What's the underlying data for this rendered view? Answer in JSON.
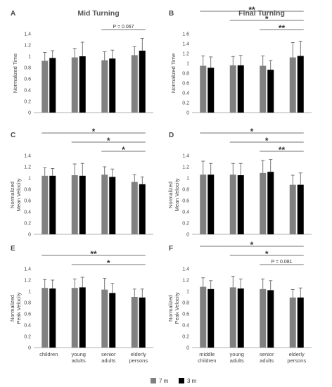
{
  "column_titles": [
    "Mid Turning",
    "Final Turning"
  ],
  "legend": [
    {
      "label": "7 m",
      "color": "#808080"
    },
    {
      "label": "3 m",
      "color": "#000000"
    }
  ],
  "chart_data": [
    {
      "panel": "A",
      "type": "bar",
      "ylabel": [
        "Normalized Time"
      ],
      "ylim": [
        0,
        1.4
      ],
      "yticks": [
        "0",
        "0.2",
        "0.4",
        "0.6",
        "0.8",
        "1",
        "1.2",
        "1.4"
      ],
      "categories": [
        [
          "children"
        ],
        [
          "young",
          "adults"
        ],
        [
          "senior",
          "adults"
        ],
        [
          "elderly",
          "persons"
        ]
      ],
      "show_xticklabels": false,
      "series": [
        {
          "name": "7 m",
          "values": [
            0.92,
            0.98,
            0.93,
            1.02
          ],
          "errors": [
            0.15,
            0.16,
            0.15,
            0.15
          ]
        },
        {
          "name": "3 m",
          "values": [
            0.97,
            1.0,
            0.96,
            1.1
          ],
          "errors": [
            0.13,
            0.25,
            0.15,
            0.22
          ]
        }
      ],
      "annotations": [
        {
          "from": 2,
          "to": 3,
          "label": "P = 0.067"
        }
      ]
    },
    {
      "panel": "B",
      "type": "bar",
      "ylabel": [
        "Normalized Time"
      ],
      "ylim": [
        0,
        1.6
      ],
      "yticks": [
        "0",
        "0.2",
        "0.4",
        "0.6",
        "0.8",
        "1",
        "1.2",
        "1.4",
        "1.6"
      ],
      "categories": [
        [
          "middle",
          "children"
        ],
        [
          "young",
          "adults"
        ],
        [
          "senior",
          "adults"
        ],
        [
          "elderly",
          "persons"
        ]
      ],
      "show_xticklabels": false,
      "series": [
        {
          "name": "7 m",
          "values": [
            0.95,
            0.96,
            0.95,
            1.12
          ],
          "errors": [
            0.2,
            0.18,
            0.2,
            0.3
          ]
        },
        {
          "name": "3 m",
          "values": [
            0.91,
            0.96,
            0.87,
            1.15
          ],
          "errors": [
            0.22,
            0.2,
            0.19,
            0.3
          ]
        }
      ],
      "annotations": [
        {
          "from": 0,
          "to": 3,
          "label": "**"
        },
        {
          "from": 1,
          "to": 3,
          "label": "*"
        },
        {
          "from": 2,
          "to": 3,
          "label": "**"
        }
      ]
    },
    {
      "panel": "C",
      "type": "bar",
      "ylabel": [
        "Normalized",
        "Mean Velocity"
      ],
      "ylim": [
        0,
        1.4
      ],
      "yticks": [
        "0",
        "0.2",
        "0.4",
        "0.6",
        "0.8",
        "1",
        "1.2",
        "1.4"
      ],
      "categories": [
        [
          "children"
        ],
        [
          "young",
          "adults"
        ],
        [
          "senior",
          "adults"
        ],
        [
          "elderly",
          "persons"
        ]
      ],
      "show_xticklabels": false,
      "series": [
        {
          "name": "7 m",
          "values": [
            1.04,
            1.05,
            1.06,
            0.93
          ],
          "errors": [
            0.14,
            0.2,
            0.14,
            0.13
          ]
        },
        {
          "name": "3 m",
          "values": [
            1.04,
            1.04,
            1.02,
            0.89
          ],
          "errors": [
            0.13,
            0.22,
            0.14,
            0.13
          ]
        }
      ],
      "annotations": [
        {
          "from": 0,
          "to": 3,
          "label": "*"
        },
        {
          "from": 1,
          "to": 3,
          "label": "*"
        },
        {
          "from": 2,
          "to": 3,
          "label": "*"
        }
      ]
    },
    {
      "panel": "D",
      "type": "bar",
      "ylabel": [
        "Normalized",
        "Mean Velocity"
      ],
      "ylim": [
        0,
        1.4
      ],
      "yticks": [
        "0",
        "0.2",
        "0.4",
        "0.6",
        "0.8",
        "1",
        "1.2",
        "1.4"
      ],
      "categories": [
        [
          "middle",
          "children"
        ],
        [
          "young",
          "adults"
        ],
        [
          "senior",
          "adults"
        ],
        [
          "elderly",
          "persons"
        ]
      ],
      "show_xticklabels": false,
      "series": [
        {
          "name": "7 m",
          "values": [
            1.06,
            1.06,
            1.09,
            0.88
          ],
          "errors": [
            0.24,
            0.2,
            0.22,
            0.17
          ]
        },
        {
          "name": "3 m",
          "values": [
            1.06,
            1.05,
            1.11,
            0.88
          ],
          "errors": [
            0.2,
            0.21,
            0.22,
            0.21
          ]
        }
      ],
      "annotations": [
        {
          "from": 0,
          "to": 3,
          "label": "*"
        },
        {
          "from": 1,
          "to": 3,
          "label": "*"
        },
        {
          "from": 2,
          "to": 3,
          "label": "**"
        }
      ]
    },
    {
      "panel": "E",
      "type": "bar",
      "ylabel": [
        "Normalized",
        "Peak Velocity"
      ],
      "ylim": [
        0,
        1.4
      ],
      "yticks": [
        "0",
        "0.2",
        "0.4",
        "0.6",
        "0.8",
        "1",
        "1.2",
        "1.4"
      ],
      "categories": [
        [
          "children"
        ],
        [
          "young",
          "adults"
        ],
        [
          "senior",
          "adults"
        ],
        [
          "elderly",
          "persons"
        ]
      ],
      "show_xticklabels": true,
      "series": [
        {
          "name": "7 m",
          "values": [
            1.06,
            1.06,
            1.03,
            0.9
          ],
          "errors": [
            0.15,
            0.16,
            0.2,
            0.14
          ]
        },
        {
          "name": "3 m",
          "values": [
            1.05,
            1.07,
            0.97,
            0.89
          ],
          "errors": [
            0.15,
            0.18,
            0.17,
            0.15
          ]
        }
      ],
      "annotations": [
        {
          "from": 0,
          "to": 3,
          "label": "**"
        },
        {
          "from": 1,
          "to": 3,
          "label": "*"
        }
      ]
    },
    {
      "panel": "F",
      "type": "bar",
      "ylabel": [
        "Normalized",
        "Peak Velocity"
      ],
      "ylim": [
        0,
        1.4
      ],
      "yticks": [
        "0",
        "0.2",
        "0.4",
        "0.6",
        "0.8",
        "1",
        "1.2",
        "1.4"
      ],
      "categories": [
        [
          "middle",
          "children"
        ],
        [
          "young",
          "adults"
        ],
        [
          "senior",
          "adults"
        ],
        [
          "elderly",
          "persons"
        ]
      ],
      "show_xticklabels": true,
      "series": [
        {
          "name": "7 m",
          "values": [
            1.08,
            1.07,
            1.04,
            0.89
          ],
          "errors": [
            0.16,
            0.2,
            0.18,
            0.14
          ]
        },
        {
          "name": "3 m",
          "values": [
            1.04,
            1.05,
            1.02,
            0.89
          ],
          "errors": [
            0.15,
            0.17,
            0.17,
            0.17
          ]
        }
      ],
      "annotations": [
        {
          "from": 0,
          "to": 3,
          "label": "*"
        },
        {
          "from": 1,
          "to": 3,
          "label": "*"
        },
        {
          "from": 2,
          "to": 3,
          "label": "P = 0.081"
        }
      ]
    }
  ]
}
